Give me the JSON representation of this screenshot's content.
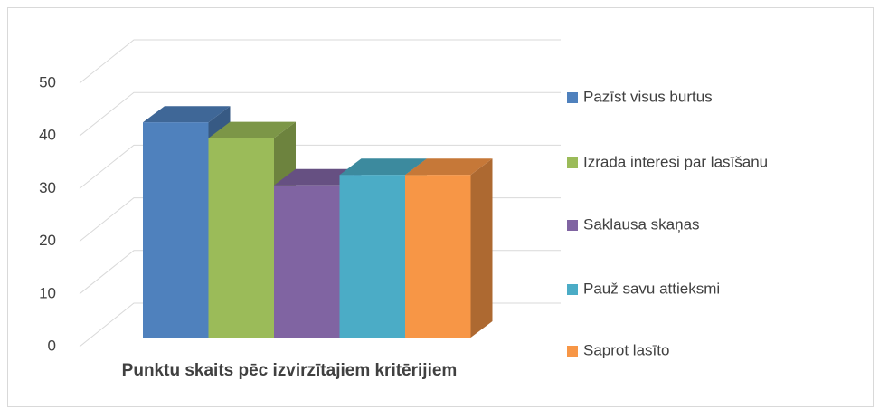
{
  "chart_data": {
    "type": "bar3d",
    "x_label": "Punktu skaits pēc izvirzītajiem kritērijiem",
    "ylim": [
      0,
      50
    ],
    "yticks": [
      0,
      10,
      20,
      30,
      40,
      50
    ],
    "grid": true,
    "legend": "right",
    "series": [
      {
        "name": "Pazīst visus burtus",
        "color": "#4f81bd",
        "values": [
          41
        ]
      },
      {
        "name": "Izrāda interesi par lasīšanu",
        "color": "#9bbb59",
        "values": [
          38
        ]
      },
      {
        "name": "Saklausa skaņas",
        "color": "#8064a2",
        "values": [
          29
        ]
      },
      {
        "name": "Pauž savu attieksmi",
        "color": "#4bacc6",
        "values": [
          31
        ]
      },
      {
        "name": "Saprot lasīto",
        "color": "#f79646",
        "values": [
          31
        ]
      }
    ]
  }
}
